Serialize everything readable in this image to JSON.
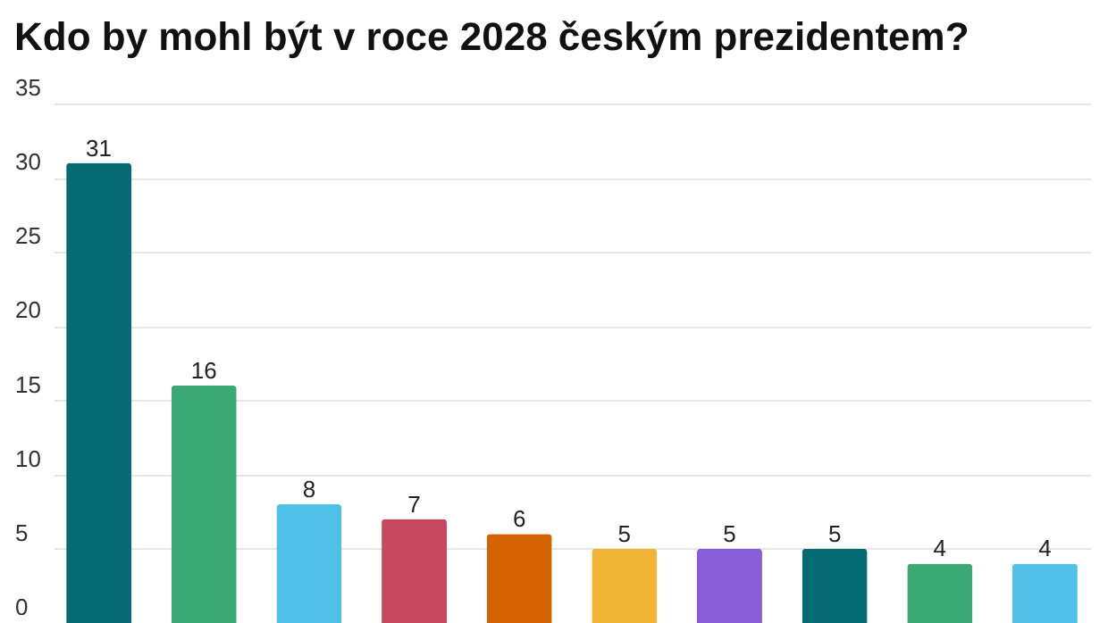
{
  "chart_data": {
    "type": "bar",
    "title": "Kdo by mohl být v roce 2028 českým prezidentem?",
    "categories": [
      null,
      null,
      null,
      null,
      null,
      null,
      null,
      null,
      null,
      null
    ],
    "values": [
      31,
      16,
      8,
      7,
      6,
      5,
      5,
      5,
      4,
      4
    ],
    "colors": [
      "#066a73",
      "#3aa874",
      "#4fc1e6",
      "#c8495f",
      "#d46400",
      "#f2b535",
      "#8a5cd8",
      "#066a73",
      "#3aa874",
      "#4fc1e6"
    ],
    "ylim": [
      0,
      35
    ],
    "yticks": [
      0,
      5,
      10,
      15,
      20,
      25,
      30,
      35
    ],
    "grid": "y",
    "data_labels": true,
    "tick_labels": "y"
  }
}
